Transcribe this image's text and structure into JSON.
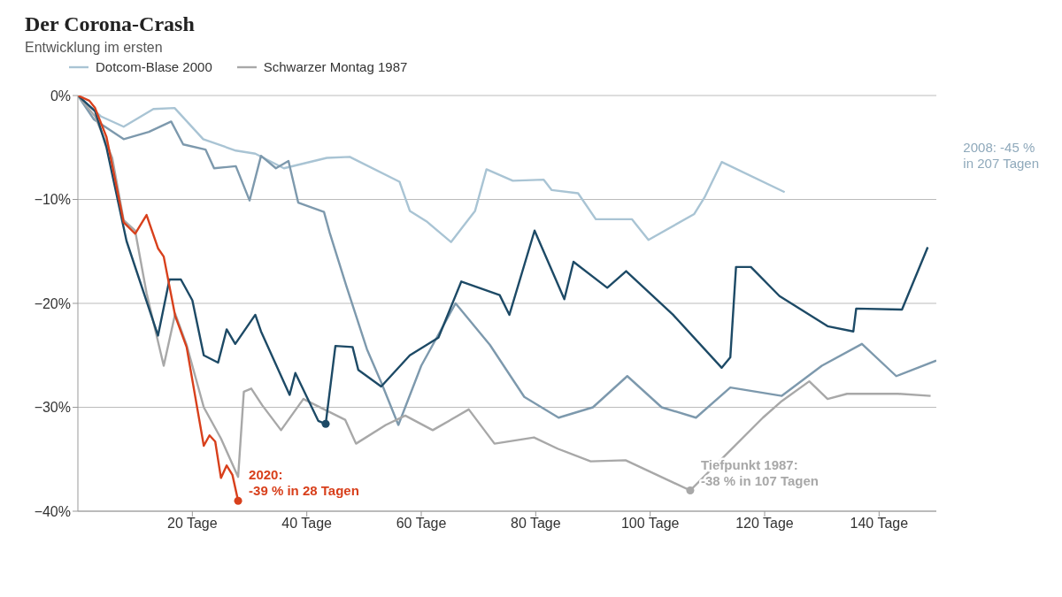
{
  "chart_data": {
    "type": "line",
    "title": "Der Corona-Crash",
    "subtitle": "Entwicklung im ersten",
    "legend": "top left",
    "grid": "y",
    "line_style": "solid",
    "xlim": [
      0,
      150
    ],
    "xticks": [
      {
        "value": 20,
        "label": "20 Tage"
      },
      {
        "value": 40,
        "label": "40 Tage"
      },
      {
        "value": 60,
        "label": "60 Tage"
      },
      {
        "value": 80,
        "label": "80 Tage"
      },
      {
        "value": 100,
        "label": "100 Tage"
      },
      {
        "value": 120,
        "label": "120 Tage"
      },
      {
        "value": 140,
        "label": "140 Tage"
      }
    ],
    "ylim": [
      -40,
      0
    ],
    "yticks": [
      {
        "value": -40,
        "label": "−40%"
      },
      {
        "value": -30,
        "label": "−30%"
      },
      {
        "value": -20,
        "label": "−20%"
      },
      {
        "value": -10,
        "label": "−10%"
      },
      {
        "value": 0,
        "label": "0%"
      }
    ],
    "series": [
      {
        "name": "Dotcom-Blase 2000",
        "color": "#a9c4d4",
        "x": [
          0,
          4,
          8,
          13.2,
          16.9,
          21.9,
          27.6,
          31,
          36,
          43.5,
          47.5,
          56.2,
          58,
          60.9,
          65.2,
          69.4,
          71.4,
          76,
          81.4,
          82.8,
          87.4,
          90.5,
          96.8,
          99.7,
          107.7,
          109.5,
          112.5,
          123.5
        ],
        "values": [
          0,
          -2,
          -3,
          -1.3,
          -1.2,
          -4.2,
          -5.3,
          -5.6,
          -7,
          -6,
          -5.9,
          -8.3,
          -11.1,
          -12.1,
          -14.1,
          -11.1,
          -7.1,
          -8.2,
          -8.1,
          -9.1,
          -9.4,
          -11.9,
          -11.9,
          -13.9,
          -11.4,
          -9.8,
          -6.4,
          -9.3
        ]
      },
      {
        "color": "#7d99ad",
        "x": [
          0,
          2.8,
          8,
          12.4,
          16.3,
          18.4,
          22.3,
          23.8,
          27.6,
          30,
          32,
          34.6,
          36.8,
          38.5,
          43,
          44,
          46.9,
          50.5,
          53,
          56,
          60,
          66,
          72,
          78,
          84,
          90,
          96,
          102,
          108,
          114,
          123,
          130,
          137,
          143,
          150
        ],
        "values": [
          0,
          -2.3,
          -4.2,
          -3.5,
          -2.5,
          -4.7,
          -5.2,
          -7,
          -6.8,
          -10.1,
          -5.8,
          -7,
          -6.3,
          -10.3,
          -11.2,
          -13.2,
          -18.3,
          -24.4,
          -27.6,
          -31.7,
          -26,
          -20,
          -24,
          -29,
          -31,
          -30,
          -27,
          -30,
          -31,
          -28.1,
          -28.9,
          -26,
          -23.9,
          -27,
          -25.5
        ]
      },
      {
        "name": "Schwarzer Montag 1987",
        "color": "#a8a8a8",
        "x": [
          0,
          3,
          6,
          8,
          10,
          12,
          15,
          17,
          19,
          22,
          25,
          28,
          29,
          30.3,
          32.2,
          35.5,
          39.4,
          46.7,
          48.6,
          53.8,
          57.2,
          62,
          65.8,
          68.3,
          72.8,
          79.7,
          83.9,
          89.6,
          95.7,
          107,
          119.7,
          123,
          127.8,
          131,
          134.4,
          143.3,
          149
        ],
        "values": [
          0,
          -2,
          -6,
          -12,
          -13,
          -19,
          -26,
          -21,
          -24,
          -30,
          -33,
          -36.7,
          -28.5,
          -28.2,
          -29.8,
          -32.2,
          -29.2,
          -31.2,
          -33.5,
          -31.7,
          -30.8,
          -32.2,
          -31,
          -30.2,
          -33.5,
          -32.9,
          -34,
          -35.2,
          -35.1,
          -38,
          -31,
          -29.4,
          -27.5,
          -29.2,
          -28.7,
          -28.7,
          -28.9
        ]
      },
      {
        "color": "#1d4a66",
        "x": [
          0,
          3,
          5,
          8.5,
          14,
          16,
          18,
          20,
          22,
          24.5,
          26,
          27.5,
          31,
          32,
          37,
          38,
          42,
          43.3,
          45,
          48,
          49,
          53,
          58,
          63,
          67,
          73.7,
          75.4,
          79.8,
          85,
          86.6,
          92.5,
          95.8,
          104,
          112.5,
          114,
          115,
          117.6,
          122.6,
          131,
          135.5,
          136,
          144,
          148.5
        ],
        "values": [
          0,
          -1.5,
          -5,
          -14,
          -23.1,
          -17.7,
          -17.7,
          -19.7,
          -25,
          -25.7,
          -22.5,
          -23.9,
          -21.1,
          -22.7,
          -28.8,
          -26.7,
          -31.3,
          -31.6,
          -24.1,
          -24.2,
          -26.4,
          -28,
          -25,
          -23.3,
          -17.9,
          -19.2,
          -21.1,
          -13,
          -19.6,
          -16,
          -18.5,
          -16.9,
          -21.1,
          -26.2,
          -25.2,
          -16.5,
          -16.5,
          -19.3,
          -22.2,
          -22.7,
          -20.5,
          -20.6,
          -14.6
        ]
      },
      {
        "color": "#d8401c",
        "x": [
          0,
          2,
          3,
          5,
          6,
          8,
          10,
          12,
          14,
          15,
          17,
          19,
          22,
          23,
          24,
          25,
          26,
          27,
          28
        ],
        "values": [
          0,
          -0.5,
          -1.2,
          -4,
          -6.7,
          -12.2,
          -13.3,
          -11.5,
          -14.7,
          -15.5,
          -21.2,
          -24.2,
          -33.7,
          -32.7,
          -33.3,
          -36.8,
          -35.6,
          -36.5,
          -39
        ]
      },
      {
        "type": "scatter",
        "x": [
          28,
          43.3,
          107
        ],
        "values": [
          -39,
          -31.6,
          -38
        ],
        "colors": [
          "#d8401c",
          "#1d4a66",
          "#a8a8a8"
        ]
      }
    ],
    "annotations": [
      {
        "text": "2020:\n-39 % in 28 Tagen",
        "x": 28,
        "y": -39
      },
      {
        "text": "Tiefpunkt 1987:\n-38 % in 107 Tagen",
        "x": 107,
        "y": -38
      },
      "2008: -45 %\nin 207 Tagen"
    ]
  }
}
